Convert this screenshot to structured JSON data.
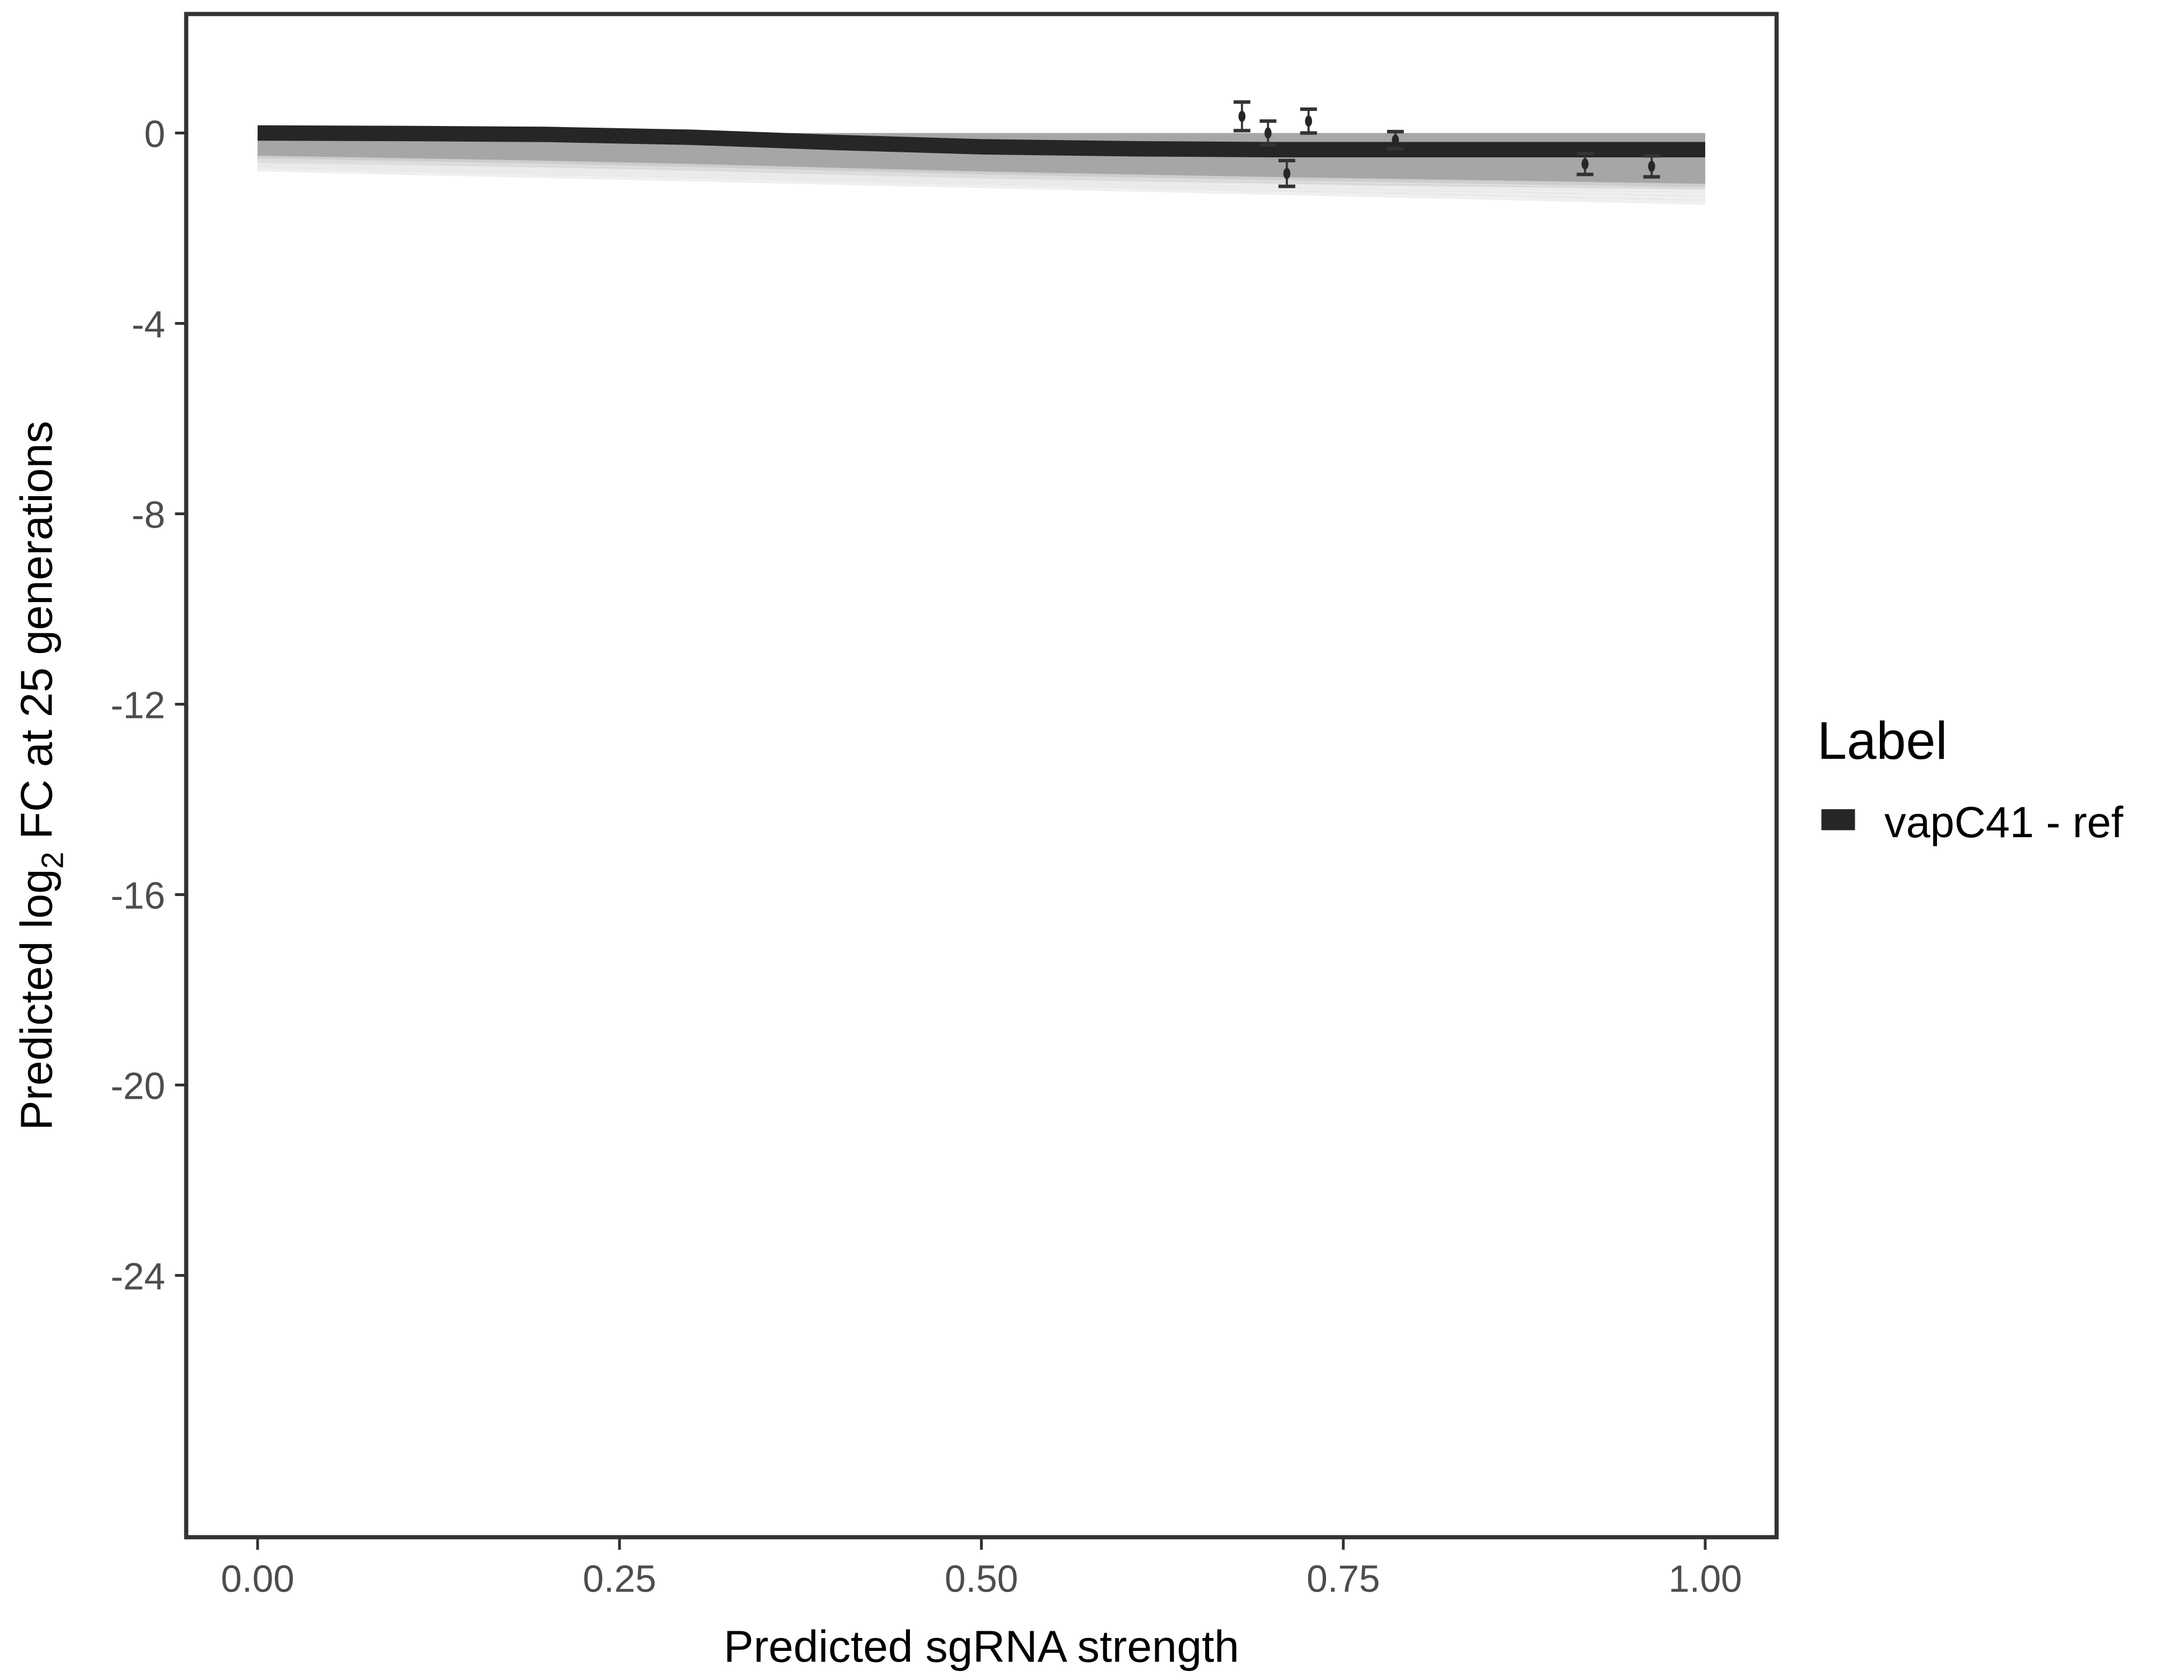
{
  "chart_data": {
    "type": "line",
    "xlabel": "Predicted sgRNA strength",
    "ylabel": {
      "pre": "Predicted  log",
      "sub": "2",
      "post": " FC at 25 generations"
    },
    "xlim": [
      -0.05,
      1.05
    ],
    "ylim": [
      -29.5,
      2.5
    ],
    "xticks": [
      "0.00",
      "0.25",
      "0.50",
      "0.75",
      "1.00"
    ],
    "yticks": [
      "0",
      "-4",
      "-8",
      "-12",
      "-16",
      "-20",
      "-24"
    ],
    "grid": false,
    "legend": {
      "title": "Label",
      "position": "right",
      "entries": [
        {
          "label": "vapC41 - ref",
          "color": "#262626"
        }
      ]
    },
    "fit_line": {
      "x": [
        0,
        0.1,
        0.2,
        0.3,
        0.4,
        0.5,
        0.6,
        0.7,
        0.8,
        0.9,
        1.0
      ],
      "y": [
        0,
        -0.01,
        -0.03,
        -0.09,
        -0.2,
        -0.29,
        -0.33,
        -0.35,
        -0.35,
        -0.35,
        -0.35
      ]
    },
    "ribbon": {
      "upper": 0.0,
      "lower_start": -0.7,
      "lower_end": -1.4,
      "color": "#a6a6a6"
    },
    "points": [
      {
        "x": 0.68,
        "y": 0.35,
        "err": 0.3
      },
      {
        "x": 0.698,
        "y": 0.0,
        "err": 0.25
      },
      {
        "x": 0.711,
        "y": -0.85,
        "err": 0.27
      },
      {
        "x": 0.726,
        "y": 0.25,
        "err": 0.25
      },
      {
        "x": 0.786,
        "y": -0.15,
        "err": 0.18
      },
      {
        "x": 0.917,
        "y": -0.65,
        "err": 0.22
      },
      {
        "x": 0.963,
        "y": -0.7,
        "err": 0.22
      }
    ]
  }
}
